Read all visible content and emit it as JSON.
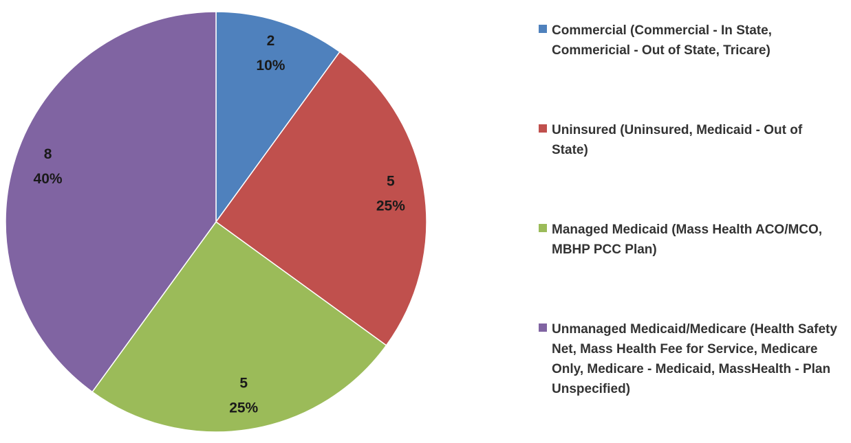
{
  "chart_data": {
    "type": "pie",
    "categories": [
      "Commercial (Commercial - In State, Commericial - Out of State, Tricare)",
      "Uninsured (Uninsured, Medicaid - Out of State)",
      "Managed Medicaid (Mass Health ACO/MCO, MBHP PCC Plan)",
      "Unmanaged Medicaid/Medicare (Health Safety Net, Mass Health Fee for Service, Medicare Only, Medicare - Medicaid, MassHealth - Plan Unspecified)"
    ],
    "values": [
      2,
      5,
      5,
      8
    ],
    "percentages": [
      10,
      25,
      25,
      40
    ],
    "percentage_labels": [
      "10%",
      "25%",
      "25%",
      "40%"
    ],
    "colors": [
      "#4f81bd",
      "#c0504d",
      "#9bbb59",
      "#8064a2"
    ],
    "legend": "right"
  }
}
